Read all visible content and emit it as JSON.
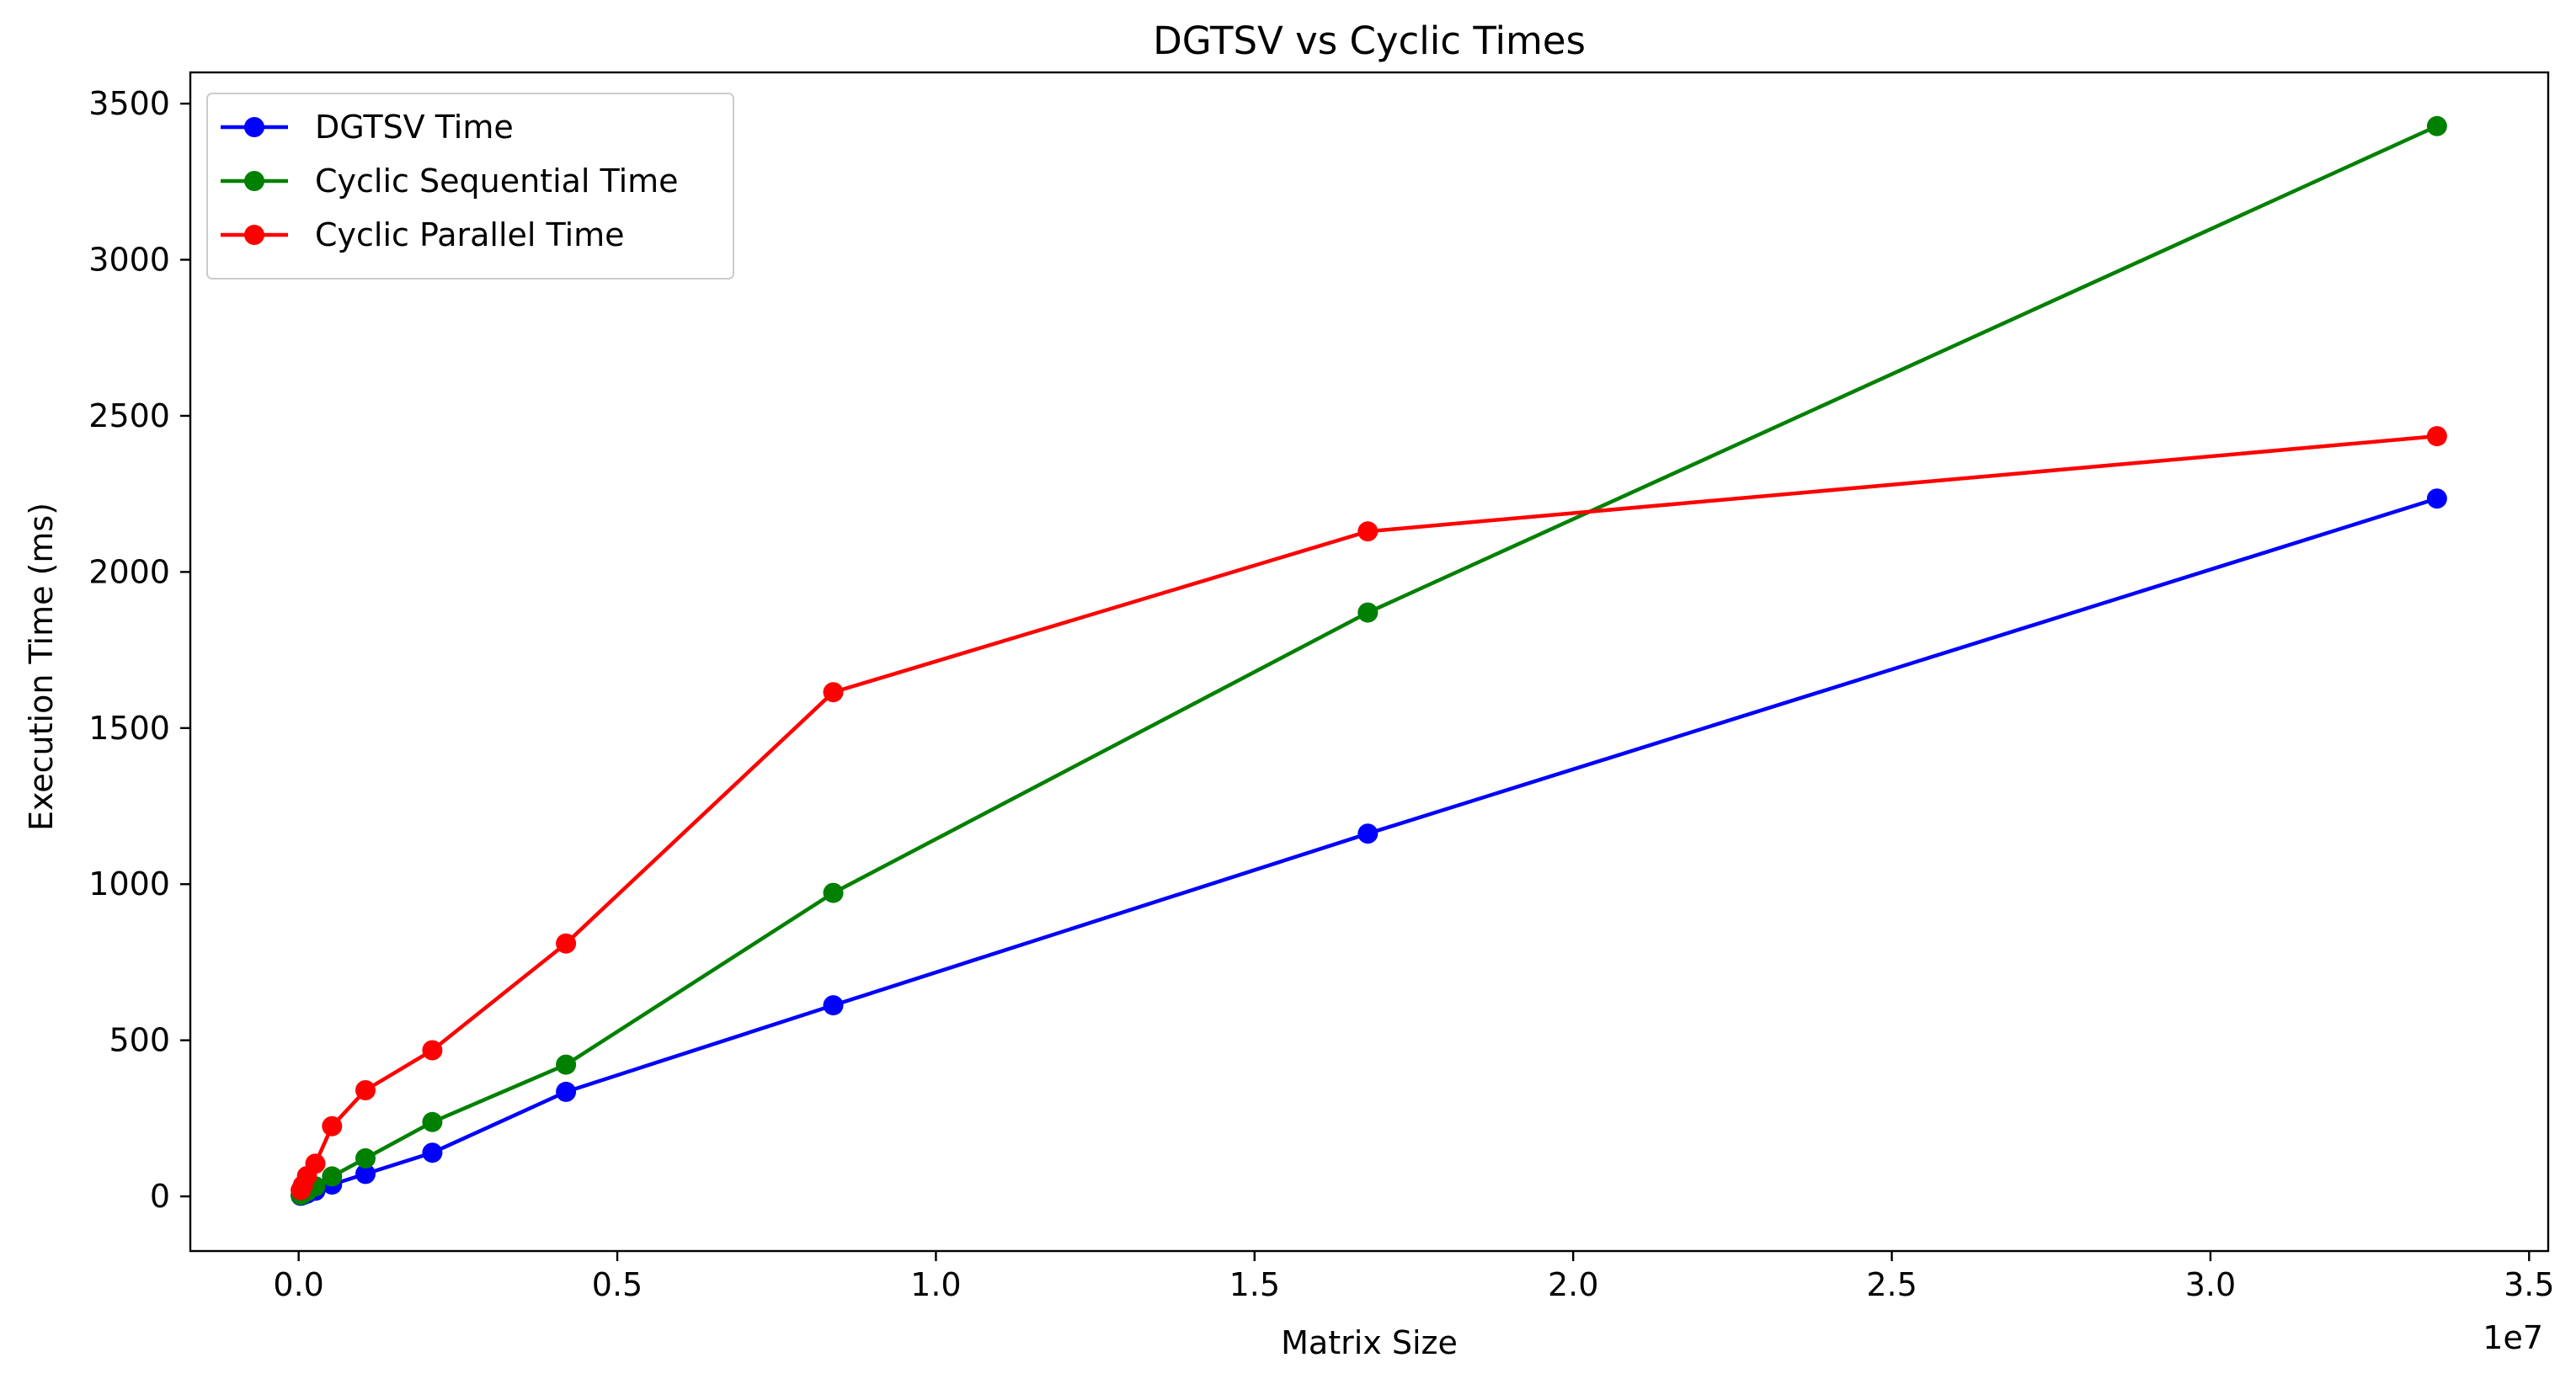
{
  "chart_data": {
    "type": "line",
    "title": "DGTSV vs Cyclic Times",
    "xlabel": "Matrix Size",
    "ylabel": "Execution Time (ms)",
    "x_offset_label": "1e7",
    "xlim": [
      -1700000,
      35300000
    ],
    "ylim": [
      -175,
      3600
    ],
    "xticks": [
      0,
      5000000,
      10000000,
      15000000,
      20000000,
      25000000,
      30000000,
      35000000
    ],
    "xtick_labels": [
      "0.0",
      "0.5",
      "1.0",
      "1.5",
      "2.0",
      "2.5",
      "3.0",
      "3.5"
    ],
    "yticks": [
      0,
      500,
      1000,
      1500,
      2000,
      2500,
      3000,
      3500
    ],
    "ytick_labels": [
      "0",
      "500",
      "1000",
      "1500",
      "2000",
      "2500",
      "3000",
      "3500"
    ],
    "grid": false,
    "legend_position": "top-left",
    "x": [
      32768,
      65536,
      131072,
      262144,
      524288,
      1048576,
      2097152,
      4194304,
      8388608,
      16777216,
      33554432
    ],
    "series": [
      {
        "name": "DGTSV Time",
        "color": "#0000ff",
        "values": [
          2,
          4,
          9,
          18,
          38,
          72,
          140,
          335,
          612,
          1162,
          2235
        ]
      },
      {
        "name": "Cyclic Sequential Time",
        "color": "#008000",
        "values": [
          4,
          8,
          16,
          32,
          64,
          122,
          238,
          422,
          972,
          1870,
          3428
        ]
      },
      {
        "name": "Cyclic Parallel Time",
        "color": "#ff0000",
        "values": [
          20,
          35,
          65,
          105,
          225,
          340,
          468,
          810,
          1615,
          2130,
          2435
        ]
      }
    ]
  }
}
